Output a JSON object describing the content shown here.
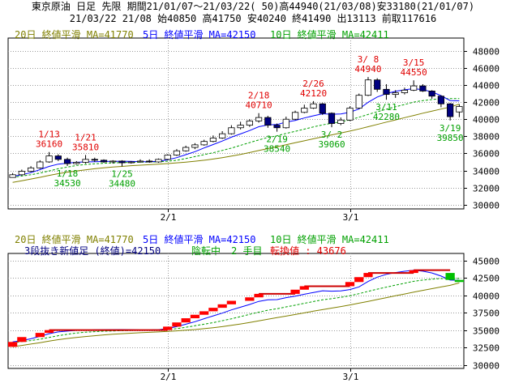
{
  "header": {
    "line1": "東京原油 日足 先限 期間21/01/07～21/03/22( 50)高44940(21/03/08)安33180(21/01/07)",
    "line2": "21/03/22 21/08 始40850 高41750 安40240 終41490 出13113 前取117616"
  },
  "colors": {
    "up": "#ffffff",
    "down": "#000080",
    "ma20": "#808000",
    "ma5": "#0000ff",
    "ma10": "#00a000",
    "high_label": "#e00000",
    "low_label": "#00a000",
    "brick_up": "#ff0000",
    "brick_down": "#00c000",
    "grid": "#9a9a9a"
  },
  "chart_data": [
    {
      "type": "candlestick",
      "legend": {
        "ma20": "20日 終値平滑 MA=41770",
        "ma5": "5日 終値平滑 MA=42150",
        "ma10": "10日 終値平滑 MA=42411"
      },
      "y_ticks": [
        30000,
        32000,
        34000,
        36000,
        38000,
        40000,
        42000,
        44000,
        46000,
        48000
      ],
      "ylim": [
        29500,
        49500
      ],
      "x_ticks": [
        {
          "index": 17,
          "label": "2/1"
        },
        {
          "index": 37,
          "label": "3/1"
        }
      ],
      "grid": true,
      "candles": [
        {
          "o": 33180,
          "h": 33700,
          "l": 33180,
          "c": 33500
        },
        {
          "o": 33500,
          "h": 34100,
          "l": 33400,
          "c": 33900
        },
        {
          "o": 33900,
          "h": 34500,
          "l": 33800,
          "c": 34300
        },
        {
          "o": 34300,
          "h": 35200,
          "l": 34200,
          "c": 35000
        },
        {
          "o": 35000,
          "h": 36160,
          "l": 34900,
          "c": 35700
        },
        {
          "o": 35700,
          "h": 35900,
          "l": 35100,
          "c": 35300
        },
        {
          "o": 35300,
          "h": 35500,
          "l": 34530,
          "c": 34800
        },
        {
          "o": 34800,
          "h": 35100,
          "l": 34700,
          "c": 34950
        },
        {
          "o": 34950,
          "h": 35810,
          "l": 34800,
          "c": 35300
        },
        {
          "o": 35300,
          "h": 35500,
          "l": 35000,
          "c": 35200
        },
        {
          "o": 35200,
          "h": 35300,
          "l": 34900,
          "c": 35000
        },
        {
          "o": 35000,
          "h": 35200,
          "l": 34800,
          "c": 35100
        },
        {
          "o": 35100,
          "h": 35200,
          "l": 34480,
          "c": 34900
        },
        {
          "o": 34900,
          "h": 35100,
          "l": 34800,
          "c": 35000
        },
        {
          "o": 35000,
          "h": 35300,
          "l": 34900,
          "c": 35100
        },
        {
          "o": 35100,
          "h": 35300,
          "l": 34900,
          "c": 35000
        },
        {
          "o": 35000,
          "h": 35400,
          "l": 34900,
          "c": 35300
        },
        {
          "o": 35300,
          "h": 35900,
          "l": 35200,
          "c": 35800
        },
        {
          "o": 35800,
          "h": 36500,
          "l": 35700,
          "c": 36300
        },
        {
          "o": 36300,
          "h": 36900,
          "l": 36200,
          "c": 36700
        },
        {
          "o": 36700,
          "h": 37200,
          "l": 36500,
          "c": 37000
        },
        {
          "o": 37000,
          "h": 37600,
          "l": 36900,
          "c": 37400
        },
        {
          "o": 37400,
          "h": 38100,
          "l": 37300,
          "c": 37800
        },
        {
          "o": 37800,
          "h": 38600,
          "l": 37700,
          "c": 38300
        },
        {
          "o": 38300,
          "h": 39300,
          "l": 38200,
          "c": 39000
        },
        {
          "o": 39000,
          "h": 39700,
          "l": 38800,
          "c": 39300
        },
        {
          "o": 39300,
          "h": 40000,
          "l": 39100,
          "c": 39800
        },
        {
          "o": 39800,
          "h": 40710,
          "l": 39600,
          "c": 40200
        },
        {
          "o": 40200,
          "h": 40400,
          "l": 39000,
          "c": 39300
        },
        {
          "o": 39300,
          "h": 39500,
          "l": 38540,
          "c": 39000
        },
        {
          "o": 39000,
          "h": 40300,
          "l": 38900,
          "c": 40000
        },
        {
          "o": 40000,
          "h": 41000,
          "l": 39900,
          "c": 40800
        },
        {
          "o": 40800,
          "h": 41700,
          "l": 40700,
          "c": 41300
        },
        {
          "o": 41300,
          "h": 42120,
          "l": 41200,
          "c": 41800
        },
        {
          "o": 41800,
          "h": 41900,
          "l": 40500,
          "c": 40700
        },
        {
          "o": 40700,
          "h": 40800,
          "l": 39060,
          "c": 39500
        },
        {
          "o": 39500,
          "h": 40200,
          "l": 39300,
          "c": 39900
        },
        {
          "o": 39900,
          "h": 41500,
          "l": 39800,
          "c": 41300
        },
        {
          "o": 41300,
          "h": 43000,
          "l": 41200,
          "c": 42800
        },
        {
          "o": 42800,
          "h": 44940,
          "l": 42700,
          "c": 44600
        },
        {
          "o": 44600,
          "h": 44800,
          "l": 43200,
          "c": 43500
        },
        {
          "o": 43500,
          "h": 44100,
          "l": 42280,
          "c": 42900
        },
        {
          "o": 42900,
          "h": 43400,
          "l": 42500,
          "c": 43100
        },
        {
          "o": 43100,
          "h": 43700,
          "l": 42900,
          "c": 43400
        },
        {
          "o": 43400,
          "h": 44550,
          "l": 43300,
          "c": 43900
        },
        {
          "o": 43900,
          "h": 44100,
          "l": 43200,
          "c": 43300
        },
        {
          "o": 43300,
          "h": 43400,
          "l": 42400,
          "c": 42700
        },
        {
          "o": 42700,
          "h": 42800,
          "l": 41400,
          "c": 41800
        },
        {
          "o": 41800,
          "h": 41900,
          "l": 39850,
          "c": 40300
        },
        {
          "o": 40850,
          "h": 41750,
          "l": 40240,
          "c": 41490
        }
      ],
      "ma5": [
        33300,
        33500,
        33750,
        34100,
        34480,
        34740,
        34860,
        34960,
        35000,
        35030,
        35050,
        35070,
        35080,
        35060,
        35020,
        35020,
        35060,
        35240,
        35500,
        35850,
        36200,
        36640,
        37040,
        37440,
        37900,
        38280,
        38680,
        39120,
        39340,
        39380,
        39660,
        39860,
        40140,
        40400,
        40640,
        40580,
        40620,
        40820,
        41200,
        41980,
        42600,
        43000,
        43260,
        43440,
        43580,
        43460,
        43200,
        42760,
        42180,
        42150
      ],
      "ma10": [
        33200,
        33350,
        33500,
        33700,
        33950,
        34200,
        34400,
        34580,
        34700,
        34780,
        34850,
        34880,
        34920,
        34950,
        34970,
        34990,
        35010,
        35080,
        35200,
        35400,
        35620,
        35850,
        36080,
        36340,
        36620,
        36940,
        37260,
        37580,
        37860,
        38060,
        38330,
        38580,
        38840,
        39100,
        39340,
        39520,
        39700,
        39930,
        40230,
        40560,
        40870,
        41170,
        41460,
        41720,
        42000,
        42180,
        42300,
        42400,
        42420,
        42411
      ],
      "ma20": [
        32600,
        32800,
        33000,
        33200,
        33420,
        33620,
        33800,
        33950,
        34080,
        34200,
        34310,
        34400,
        34480,
        34560,
        34620,
        34680,
        34740,
        34810,
        34890,
        34980,
        35080,
        35200,
        35340,
        35500,
        35680,
        35880,
        36100,
        36330,
        36560,
        36780,
        37010,
        37240,
        37470,
        37710,
        37940,
        38160,
        38380,
        38610,
        38860,
        39120,
        39390,
        39660,
        39920,
        40180,
        40440,
        40700,
        40940,
        41190,
        41420,
        41770
      ],
      "annotations": [
        {
          "text": "1/13",
          "value": "36160",
          "index": 4,
          "kind": "high"
        },
        {
          "text": "1/21",
          "value": "35810",
          "index": 8,
          "kind": "high"
        },
        {
          "text": "1/18",
          "value": "34530",
          "index": 6,
          "kind": "low"
        },
        {
          "text": "1/25",
          "value": "34480",
          "index": 12,
          "kind": "low"
        },
        {
          "text": "2/18",
          "value": "40710",
          "index": 27,
          "kind": "high"
        },
        {
          "text": "2/19",
          "value": "38540",
          "index": 29,
          "kind": "low"
        },
        {
          "text": "2/26",
          "value": "42120",
          "index": 33,
          "kind": "high"
        },
        {
          "text": "3/ 2",
          "value": "39060",
          "index": 35,
          "kind": "low"
        },
        {
          "text": "3/ 8",
          "value": "44940",
          "index": 39,
          "kind": "high"
        },
        {
          "text": "3/11",
          "value": "42280",
          "index": 41,
          "kind": "low"
        },
        {
          "text": "3/15",
          "value": "44550",
          "index": 44,
          "kind": "high"
        },
        {
          "text": "3/19",
          "value": "39850",
          "index": 48,
          "kind": "low"
        }
      ]
    },
    {
      "type": "three-line-break",
      "legend": {
        "ma20": "20日 終値平滑 MA=41770",
        "ma5": "5日 終値平滑 MA=42150",
        "ma10": "10日 終値平滑 MA=42411"
      },
      "info": {
        "main": "3段抜き新値足 (終値)=42150",
        "state": "陰転中",
        "count": "2 手目",
        "reversal": "転換値 : 43676"
      },
      "y_ticks": [
        30000,
        32500,
        35000,
        37500,
        40000,
        42500,
        45000
      ],
      "ylim": [
        29500,
        46000
      ],
      "x_ticks": [
        {
          "index": 17,
          "label": "2/1"
        },
        {
          "index": 37,
          "label": "3/1"
        }
      ],
      "grid": true,
      "bricks": [
        {
          "index": 0,
          "lo": 32600,
          "hi": 33300,
          "dir": "up"
        },
        {
          "index": 1,
          "lo": 33300,
          "hi": 34000,
          "dir": "up"
        },
        {
          "index": 3,
          "lo": 34000,
          "hi": 34600,
          "dir": "up"
        },
        {
          "index": 4,
          "lo": 34600,
          "hi": 35000,
          "dir": "up"
        },
        {
          "index": 17,
          "lo": 35000,
          "hi": 35500,
          "dir": "up"
        },
        {
          "index": 18,
          "lo": 35500,
          "hi": 36100,
          "dir": "up"
        },
        {
          "index": 19,
          "lo": 36100,
          "hi": 36700,
          "dir": "up"
        },
        {
          "index": 20,
          "lo": 36700,
          "hi": 37200,
          "dir": "up"
        },
        {
          "index": 21,
          "lo": 37200,
          "hi": 37700,
          "dir": "up"
        },
        {
          "index": 22,
          "lo": 37700,
          "hi": 38200,
          "dir": "up"
        },
        {
          "index": 23,
          "lo": 38200,
          "hi": 38700,
          "dir": "up"
        },
        {
          "index": 24,
          "lo": 38700,
          "hi": 39200,
          "dir": "up"
        },
        {
          "index": 26,
          "lo": 39200,
          "hi": 39700,
          "dir": "up"
        },
        {
          "index": 27,
          "lo": 39700,
          "hi": 40200,
          "dir": "up"
        },
        {
          "index": 31,
          "lo": 40200,
          "hi": 40800,
          "dir": "up"
        },
        {
          "index": 32,
          "lo": 40800,
          "hi": 41300,
          "dir": "up"
        },
        {
          "index": 37,
          "lo": 41300,
          "hi": 41900,
          "dir": "up"
        },
        {
          "index": 38,
          "lo": 41900,
          "hi": 42600,
          "dir": "up"
        },
        {
          "index": 39,
          "lo": 42600,
          "hi": 43200,
          "dir": "up"
        },
        {
          "index": 44,
          "lo": 43200,
          "hi": 43600,
          "dir": "up"
        },
        {
          "index": 48,
          "lo": 42200,
          "hi": 43200,
          "dir": "down"
        },
        {
          "index": 49,
          "lo": 41900,
          "hi": 42200,
          "dir": "down"
        }
      ],
      "line": [
        {
          "from": 4,
          "to": 17,
          "value": 35000
        },
        {
          "from": 27,
          "to": 31,
          "value": 40200
        },
        {
          "from": 32,
          "to": 37,
          "value": 41300
        },
        {
          "from": 39,
          "to": 44,
          "value": 43200
        },
        {
          "from": 44,
          "to": 48,
          "value": 43600
        }
      ]
    }
  ]
}
